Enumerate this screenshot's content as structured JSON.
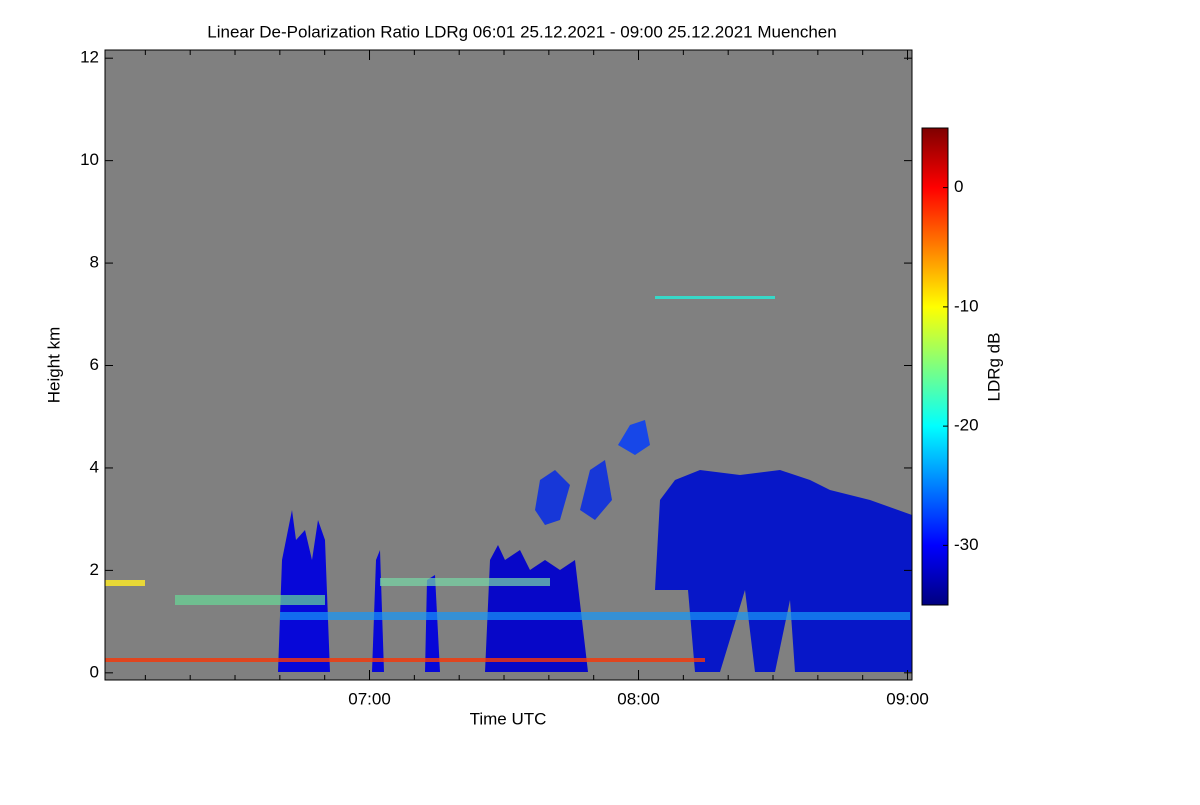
{
  "chart_data": {
    "type": "heatmap",
    "title": "Linear De-Polarization Ratio LDRg   06:01 25.12.2021 - 09:00 25.12.2021 Muenchen",
    "x_label": "Time UTC",
    "y_label": "Height km",
    "colorbar_label": "LDRg dB",
    "xlim": [
      361,
      541
    ],
    "xticks": [
      {
        "value": 420,
        "label": "07:00"
      },
      {
        "value": 480,
        "label": "08:00"
      },
      {
        "value": 540,
        "label": "09:00"
      }
    ],
    "x_minor_ticks": [
      370,
      380,
      390,
      400,
      410,
      430,
      440,
      450,
      460,
      470,
      490,
      500,
      510,
      520,
      530
    ],
    "ylim": [
      -0.14,
      12.16
    ],
    "yticks": [
      0,
      2,
      4,
      6,
      8,
      10,
      12
    ],
    "clim": [
      -35,
      5
    ],
    "cticks": [
      0,
      -10,
      -20,
      -30
    ],
    "colormap": [
      "#00007f",
      "#0000ff",
      "#007fff",
      "#00ffff",
      "#7fff7f",
      "#ffff00",
      "#ff7f00",
      "#ff0000",
      "#7f0000"
    ],
    "background": "#808080"
  }
}
